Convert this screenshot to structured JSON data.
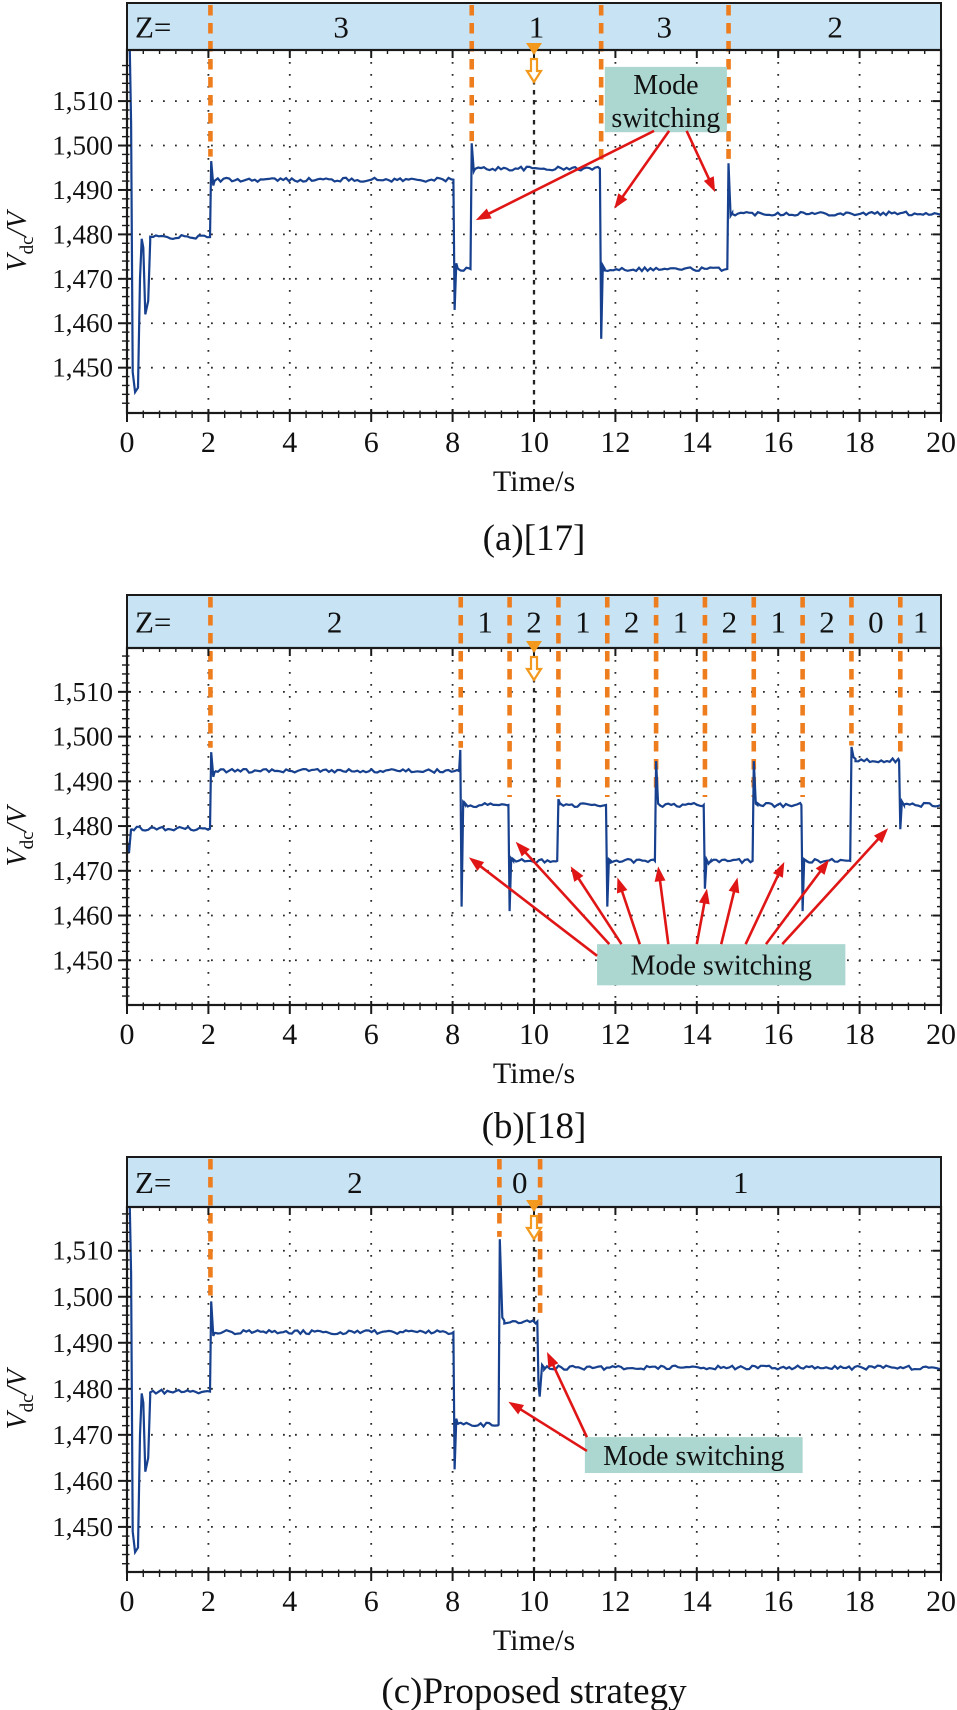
{
  "figure": {
    "background": "#ffffff"
  },
  "colors": {
    "header_fill": "#c8e4f4",
    "header_border": "#1a1a1a",
    "zone_dash": "#ee7d1e",
    "waveform": "#17418f",
    "grid": "#2a2a2a",
    "axis": "#1a1a1a",
    "time_marker_line": "#222222",
    "marker_orange": "#f3991d",
    "mode_box_fill": "#abd7d0",
    "arrow_red": "#e01616",
    "text": "#111111"
  },
  "x_axis": {
    "title": "Time/s",
    "min": 0,
    "max": 20,
    "major_step": 2,
    "minor_step": 0.4,
    "tick_labels": [
      "0",
      "2",
      "4",
      "6",
      "8",
      "10",
      "12",
      "14",
      "16",
      "18",
      "20"
    ]
  },
  "y_axis": {
    "title_main": "V",
    "title_sub": "dc",
    "title_unit": "/V",
    "tick_values": [
      1450,
      1460,
      1470,
      1480,
      1490,
      1500,
      1510
    ],
    "tick_labels": [
      "1,450",
      "1,460",
      "1,470",
      "1,480",
      "1,490",
      "1,500",
      "1,510"
    ],
    "minor_step": 2
  },
  "chart_data": [
    {
      "panel": "a",
      "type": "line",
      "caption": "(a)[17]",
      "ylim": [
        1440,
        1521.5
      ],
      "zones": {
        "prefix": "Z=",
        "boundaries": [
          {
            "t": 2.05,
            "end_v": 1497.5
          },
          {
            "t": 8.47,
            "end_v": 1501.0
          },
          {
            "t": 11.65,
            "end_v": 1496.0
          },
          {
            "t": 14.78,
            "end_v": 1497.0
          }
        ],
        "labels": [
          {
            "text": "3",
            "t": 5.26
          },
          {
            "text": "1",
            "t": 10.06
          },
          {
            "text": "3",
            "t": 13.2
          },
          {
            "text": "2",
            "t": 17.4
          }
        ]
      },
      "time_marker_t": 10,
      "mode_label": {
        "lines": [
          "Mode",
          "switching"
        ],
        "box_t": [
          11.74,
          14.74
        ],
        "box_v": [
          1517.7,
          1503.0
        ]
      },
      "arrows": [
        {
          "from": [
            12.95,
            1503.3
          ],
          "to": [
            8.57,
            1483.2
          ]
        },
        {
          "from": [
            13.32,
            1503.3
          ],
          "to": [
            11.97,
            1485.8
          ]
        },
        {
          "from": [
            13.75,
            1503.3
          ],
          "to": [
            14.45,
            1489.5
          ]
        }
      ],
      "waveform_segments": [
        {
          "pts": [
            [
              0.07,
              1521.5
            ],
            [
              0.1,
              1505
            ],
            [
              0.14,
              1449
            ],
            [
              0.2,
              1444.5
            ],
            [
              0.27,
              1445.5
            ],
            [
              0.32,
              1470
            ],
            [
              0.36,
              1479
            ],
            [
              0.4,
              1477
            ],
            [
              0.45,
              1462
            ],
            [
              0.52,
              1465
            ],
            [
              0.57,
              1478.5
            ]
          ]
        },
        {
          "flat": [
            0.57,
            2.04,
            1479.4
          ]
        },
        {
          "pts": [
            [
              2.04,
              1479.4
            ],
            [
              2.07,
              1496.5
            ],
            [
              2.12,
              1491.0
            ],
            [
              2.16,
              1492.3
            ]
          ]
        },
        {
          "flat": [
            2.16,
            8.02,
            1492.3
          ]
        },
        {
          "pts": [
            [
              8.02,
              1492.3
            ],
            [
              8.05,
              1463.0
            ],
            [
              8.09,
              1473.5
            ],
            [
              8.13,
              1472.2
            ]
          ]
        },
        {
          "flat": [
            8.13,
            8.44,
            1472.2
          ]
        },
        {
          "pts": [
            [
              8.44,
              1472.2
            ],
            [
              8.47,
              1500.5
            ],
            [
              8.52,
              1494.2
            ],
            [
              8.56,
              1494.9
            ]
          ]
        },
        {
          "flat": [
            8.56,
            11.62,
            1494.8
          ]
        },
        {
          "pts": [
            [
              11.62,
              1494.8
            ],
            [
              11.65,
              1456.5
            ],
            [
              11.69,
              1473.0
            ],
            [
              11.74,
              1472.2
            ]
          ]
        },
        {
          "flat": [
            11.74,
            14.75,
            1472.2
          ]
        },
        {
          "pts": [
            [
              14.75,
              1472.2
            ],
            [
              14.78,
              1496.0
            ],
            [
              14.83,
              1484.2
            ],
            [
              14.87,
              1484.8
            ]
          ]
        },
        {
          "flat": [
            14.87,
            20,
            1484.7
          ]
        }
      ]
    },
    {
      "panel": "b",
      "type": "line",
      "caption": "(b)[18]",
      "ylim": [
        1440,
        1519.8
      ],
      "zones": {
        "prefix": "Z=",
        "boundaries": [
          {
            "t": 2.05,
            "end_v": 1497.5
          },
          {
            "t": 8.2,
            "end_v": 1497.5
          },
          {
            "t": 9.4,
            "end_v": 1486.5
          },
          {
            "t": 10.6,
            "end_v": 1486.5
          },
          {
            "t": 11.8,
            "end_v": 1486.5
          },
          {
            "t": 13.0,
            "end_v": 1487.0
          },
          {
            "t": 14.2,
            "end_v": 1486.5
          },
          {
            "t": 15.4,
            "end_v": 1486.5
          },
          {
            "t": 16.6,
            "end_v": 1486.5
          },
          {
            "t": 17.8,
            "end_v": 1498.0
          },
          {
            "t": 19.0,
            "end_v": 1495.5
          }
        ],
        "labels": [
          {
            "text": "2",
            "t": 5.1
          },
          {
            "text": "1",
            "t": 8.8
          },
          {
            "text": "2",
            "t": 10.0
          },
          {
            "text": "1",
            "t": 11.2
          },
          {
            "text": "2",
            "t": 12.4
          },
          {
            "text": "1",
            "t": 13.6
          },
          {
            "text": "2",
            "t": 14.8
          },
          {
            "text": "1",
            "t": 16.0
          },
          {
            "text": "2",
            "t": 17.2
          },
          {
            "text": "0",
            "t": 18.4
          },
          {
            "text": "1",
            "t": 19.5
          }
        ]
      },
      "time_marker_t": 10,
      "mode_label": {
        "lines": [
          "Mode switching"
        ],
        "box_t": [
          11.55,
          17.65
        ],
        "box_v": [
          1453.6,
          1444.4
        ]
      },
      "arrows": [
        {
          "from": [
            11.55,
            1451.0
          ],
          "to": [
            8.4,
            1473.0
          ]
        },
        {
          "from": [
            11.85,
            1453.6
          ],
          "to": [
            9.55,
            1476.5
          ]
        },
        {
          "from": [
            12.15,
            1453.6
          ],
          "to": [
            10.9,
            1471.0
          ]
        },
        {
          "from": [
            12.6,
            1453.6
          ],
          "to": [
            12.05,
            1468.5
          ]
        },
        {
          "from": [
            13.3,
            1453.6
          ],
          "to": [
            13.05,
            1471.0
          ]
        },
        {
          "from": [
            14.0,
            1453.6
          ],
          "to": [
            14.25,
            1466.0
          ]
        },
        {
          "from": [
            14.6,
            1453.6
          ],
          "to": [
            15.0,
            1468.5
          ]
        },
        {
          "from": [
            15.2,
            1453.6
          ],
          "to": [
            16.15,
            1472.0
          ]
        },
        {
          "from": [
            15.7,
            1453.6
          ],
          "to": [
            17.25,
            1472.5
          ]
        },
        {
          "from": [
            16.1,
            1453.6
          ],
          "to": [
            18.7,
            1479.5
          ]
        }
      ],
      "waveform_segments": [
        {
          "pts": [
            [
              0,
              1476.5
            ],
            [
              0.05,
              1474.0
            ],
            [
              0.1,
              1479.4
            ]
          ]
        },
        {
          "flat": [
            0.1,
            2.04,
            1479.4
          ]
        },
        {
          "pts": [
            [
              2.04,
              1479.4
            ],
            [
              2.07,
              1496.5
            ],
            [
              2.12,
              1491.0
            ],
            [
              2.16,
              1492.3
            ]
          ]
        },
        {
          "flat": [
            2.16,
            8.16,
            1492.3
          ]
        },
        {
          "pts": [
            [
              8.16,
              1492.3
            ],
            [
              8.19,
              1497.0
            ],
            [
              8.22,
              1462.0
            ],
            [
              8.26,
              1485.3
            ],
            [
              8.3,
              1484.8
            ]
          ]
        },
        {
          "flat": [
            8.3,
            9.37,
            1484.7
          ]
        },
        {
          "pts": [
            [
              9.37,
              1484.7
            ],
            [
              9.4,
              1461.0
            ],
            [
              9.44,
              1472.8
            ],
            [
              9.49,
              1472.2
            ]
          ]
        },
        {
          "flat": [
            9.49,
            10.57,
            1472.2
          ]
        },
        {
          "pts": [
            [
              10.57,
              1472.2
            ],
            [
              10.6,
              1486.0
            ],
            [
              10.65,
              1484.7
            ]
          ]
        },
        {
          "flat": [
            10.65,
            11.77,
            1484.7
          ]
        },
        {
          "pts": [
            [
              11.77,
              1484.7
            ],
            [
              11.8,
              1462.0
            ],
            [
              11.84,
              1472.6
            ],
            [
              11.89,
              1472.2
            ]
          ]
        },
        {
          "flat": [
            11.89,
            12.97,
            1472.2
          ]
        },
        {
          "pts": [
            [
              12.97,
              1472.2
            ],
            [
              13.0,
              1494.5
            ],
            [
              13.05,
              1485.0
            ],
            [
              13.09,
              1484.7
            ]
          ]
        },
        {
          "flat": [
            13.09,
            14.17,
            1484.7
          ]
        },
        {
          "pts": [
            [
              14.17,
              1484.7
            ],
            [
              14.2,
              1466.0
            ],
            [
              14.24,
              1472.5
            ],
            [
              14.29,
              1471.6
            ],
            [
              14.34,
              1472.2
            ]
          ]
        },
        {
          "flat": [
            14.34,
            15.37,
            1472.2
          ]
        },
        {
          "pts": [
            [
              15.37,
              1472.2
            ],
            [
              15.4,
              1494.5
            ],
            [
              15.45,
              1485.0
            ],
            [
              15.49,
              1484.7
            ]
          ]
        },
        {
          "flat": [
            15.49,
            16.57,
            1484.7
          ]
        },
        {
          "pts": [
            [
              16.57,
              1484.7
            ],
            [
              16.6,
              1461.0
            ],
            [
              16.64,
              1472.6
            ],
            [
              16.69,
              1472.2
            ]
          ]
        },
        {
          "flat": [
            16.69,
            17.77,
            1472.2
          ]
        },
        {
          "pts": [
            [
              17.77,
              1472.2
            ],
            [
              17.8,
              1497.7
            ],
            [
              17.85,
              1495.4
            ],
            [
              17.9,
              1495.0
            ]
          ]
        },
        {
          "flat": [
            17.9,
            18.97,
            1494.7
          ]
        },
        {
          "pts": [
            [
              18.97,
              1494.5
            ],
            [
              19.0,
              1479.3
            ],
            [
              19.04,
              1485.5
            ],
            [
              19.09,
              1484.7
            ]
          ]
        },
        {
          "flat": [
            19.09,
            20,
            1484.7
          ]
        }
      ]
    },
    {
      "panel": "c",
      "type": "line",
      "caption": "(c)Proposed strategy",
      "ylim": [
        1440,
        1519.5
      ],
      "zones": {
        "prefix": "Z=",
        "boundaries": [
          {
            "t": 2.05,
            "end_v": 1499.5
          },
          {
            "t": 9.15,
            "end_v": 1513.0
          },
          {
            "t": 10.15,
            "end_v": 1496.5
          }
        ],
        "labels": [
          {
            "text": "2",
            "t": 5.6
          },
          {
            "text": "0",
            "t": 9.65
          },
          {
            "text": "1",
            "t": 15.08
          }
        ]
      },
      "time_marker_t": 10,
      "mode_label": {
        "lines": [
          "Mode switching"
        ],
        "box_t": [
          11.25,
          16.6
        ],
        "box_v": [
          1469.5,
          1461.7
        ]
      },
      "arrows": [
        {
          "from": [
            11.3,
            1466.5
          ],
          "to": [
            9.37,
            1477.2
          ]
        },
        {
          "from": [
            11.3,
            1469.5
          ],
          "to": [
            10.32,
            1488.0
          ]
        }
      ],
      "waveform_segments": [
        {
          "pts": [
            [
              0.07,
              1519.5
            ],
            [
              0.1,
              1505
            ],
            [
              0.14,
              1449
            ],
            [
              0.2,
              1444.5
            ],
            [
              0.27,
              1445.5
            ],
            [
              0.32,
              1470
            ],
            [
              0.36,
              1479
            ],
            [
              0.4,
              1477
            ],
            [
              0.45,
              1462
            ],
            [
              0.52,
              1465
            ],
            [
              0.57,
              1478.5
            ]
          ]
        },
        {
          "flat": [
            0.57,
            2.04,
            1479.4
          ]
        },
        {
          "pts": [
            [
              2.04,
              1479.4
            ],
            [
              2.07,
              1499.0
            ],
            [
              2.12,
              1491.5
            ],
            [
              2.16,
              1492.3
            ]
          ]
        },
        {
          "flat": [
            2.16,
            8.02,
            1492.3
          ]
        },
        {
          "pts": [
            [
              8.02,
              1492.3
            ],
            [
              8.05,
              1462.5
            ],
            [
              8.09,
              1473.5
            ],
            [
              8.13,
              1472.2
            ]
          ]
        },
        {
          "flat": [
            8.13,
            9.13,
            1472.2
          ]
        },
        {
          "pts": [
            [
              9.13,
              1472.2
            ],
            [
              9.16,
              1512.5
            ],
            [
              9.22,
              1495.5
            ],
            [
              9.27,
              1494.8
            ]
          ]
        },
        {
          "flat": [
            9.27,
            10.08,
            1494.6
          ]
        },
        {
          "pts": [
            [
              10.08,
              1494.6
            ],
            [
              10.11,
              1481.0
            ],
            [
              10.14,
              1478.3
            ],
            [
              10.2,
              1485.2
            ],
            [
              10.25,
              1484.6
            ]
          ]
        },
        {
          "flat": [
            10.25,
            20,
            1484.6
          ]
        }
      ]
    }
  ]
}
